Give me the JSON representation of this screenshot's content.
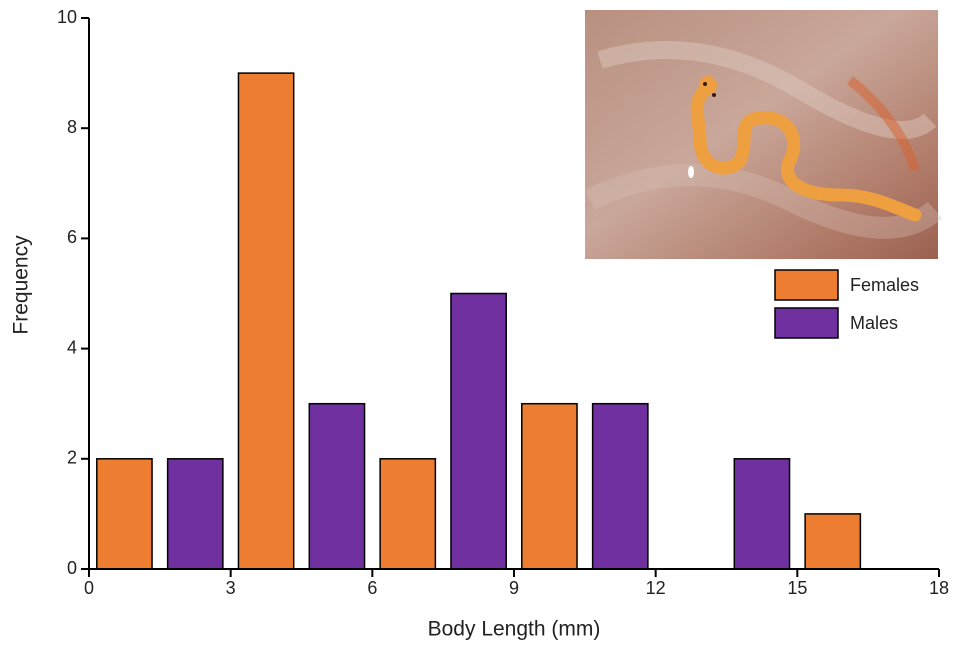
{
  "chart_data": {
    "type": "histogram",
    "x_label": "Body Length (mm)",
    "y_label": "Frequency",
    "bins": [
      0,
      1.5,
      3,
      4.5,
      6,
      7.5,
      9,
      10.5,
      12,
      13.5,
      15,
      16.5,
      18
    ],
    "series": [
      {
        "name": "Females",
        "color": "#ed7d31",
        "values": [
          2,
          0,
          9,
          0,
          2,
          0,
          3,
          0,
          0,
          0,
          1,
          0
        ]
      },
      {
        "name": "Males",
        "color": "#7030a0",
        "values": [
          0,
          2,
          0,
          3,
          0,
          5,
          0,
          3,
          0,
          2,
          0,
          0
        ]
      }
    ],
    "xlim": [
      0,
      18
    ],
    "xticks": [
      0,
      3,
      6,
      9,
      12,
      15,
      18
    ],
    "ylim": [
      0,
      10
    ],
    "yticks": [
      0,
      2,
      4,
      6,
      8,
      10
    ],
    "legend": "right"
  }
}
